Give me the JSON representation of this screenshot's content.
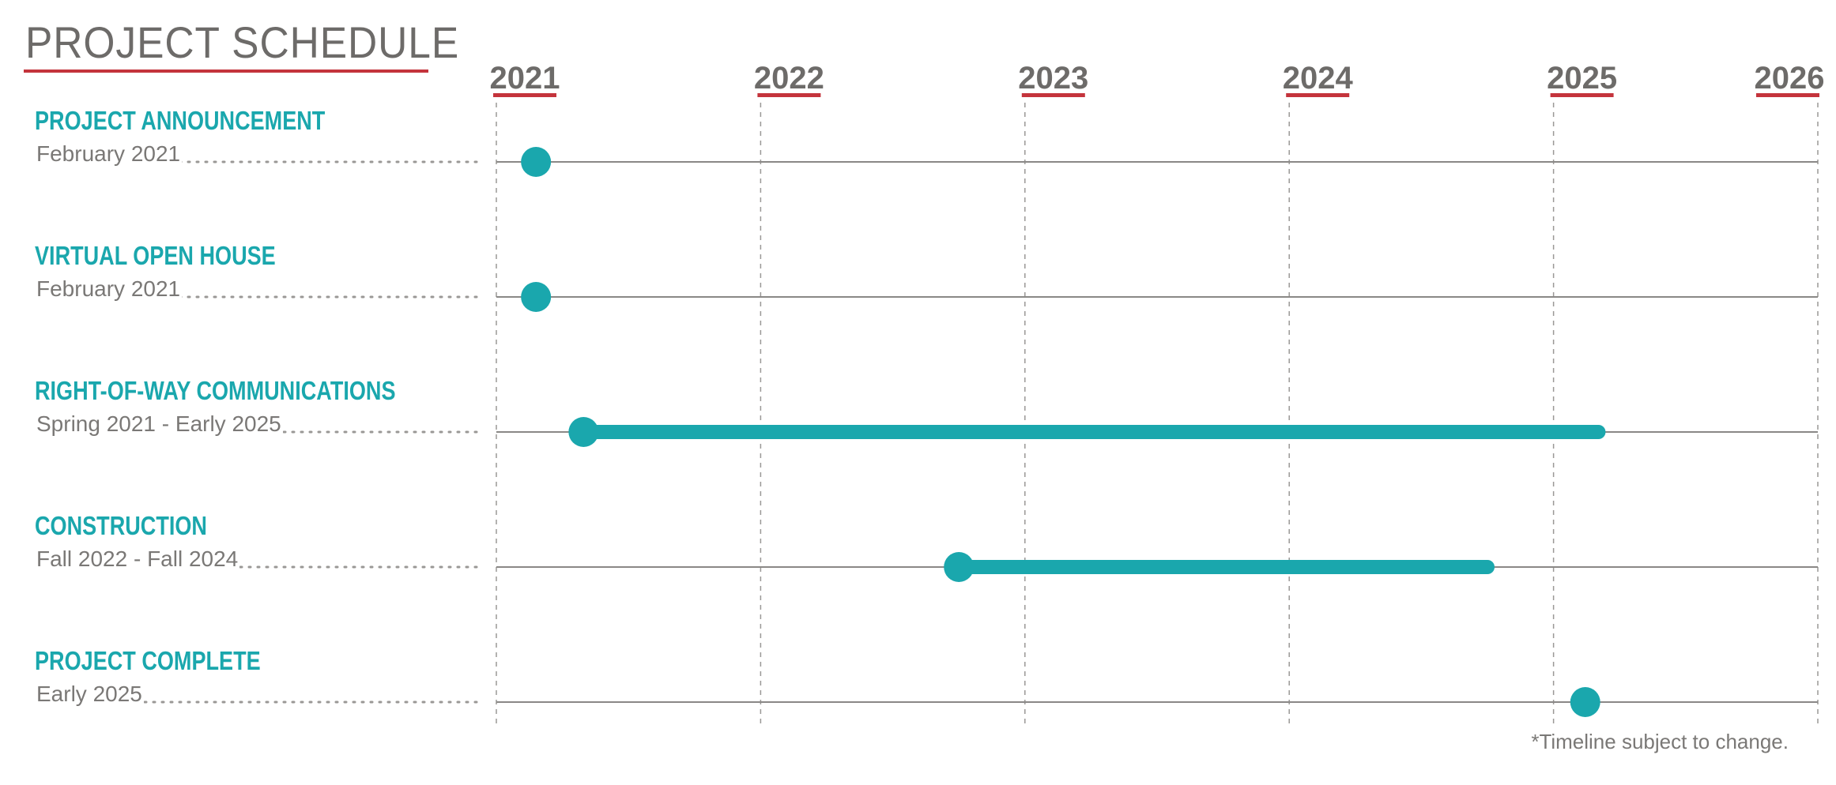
{
  "header": {
    "title": "PROJECT SCHEDULE"
  },
  "footnote": "*Timeline subject to change.",
  "colors": {
    "accent": "#1aa7ad",
    "rule": "#c4343c",
    "text": "#6d6b69",
    "gridline": "#9a9896",
    "track": "#8a8886"
  },
  "chart_data": {
    "type": "timeline",
    "title": "PROJECT SCHEDULE",
    "x_ticks": [
      "2021",
      "2022",
      "2023",
      "2024",
      "2025",
      "2026"
    ],
    "xlim": [
      2021.0,
      2026.0
    ],
    "grid": "vertical dashed at each year",
    "rows": [
      {
        "name": "PROJECT ANNOUNCEMENT",
        "date_label": "February 2021",
        "kind": "milestone",
        "start": 2021.15
      },
      {
        "name": "VIRTUAL OPEN HOUSE",
        "date_label": "February 2021",
        "kind": "milestone",
        "start": 2021.15
      },
      {
        "name": "RIGHT-OF-WAY COMMUNICATIONS",
        "date_label": "Spring 2021 - Early 2025",
        "kind": "range",
        "start": 2021.33,
        "end": 2025.17
      },
      {
        "name": "CONSTRUCTION",
        "date_label": "Fall 2022 - Fall 2024",
        "kind": "range",
        "start": 2022.75,
        "end": 2024.75
      },
      {
        "name": "PROJECT COMPLETE",
        "date_label": "Early 2025",
        "kind": "milestone",
        "start": 2025.12
      }
    ]
  }
}
